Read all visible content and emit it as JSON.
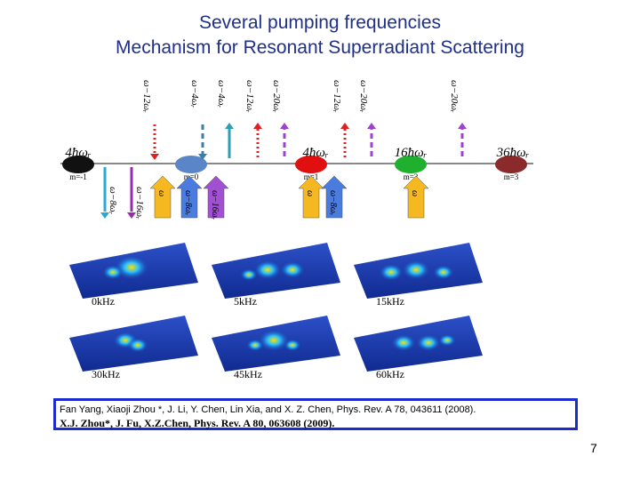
{
  "title": {
    "line1": "Several pumping frequencies",
    "line2": "Mechanism for Resonant Superradiant Scattering"
  },
  "diagram": {
    "energies": [
      "4ħωᵣ",
      "4ħωᵣ",
      "16ħωᵣ",
      "36ħωᵣ"
    ],
    "levels": [
      "m=-1",
      "m=0",
      "m=1",
      "m=2",
      "m=3"
    ],
    "top_arrows": [
      "ω−12ωᵣ",
      "ω−4ωᵣ",
      "ω−4ωᵣ",
      "ω−12ωᵣ",
      "ω−20ωᵣ",
      "ω−12ωᵣ",
      "ω−20ωᵣ",
      "ω−20ωᵣ"
    ],
    "bottom_arrows": [
      "ω−8ωᵣ",
      "ω−16ωᵣ"
    ],
    "pump_arrows": [
      "ω",
      "ω−8ωᵣ",
      "ω−16ωᵣ",
      "ω",
      "ω−8ωᵣ",
      "ω"
    ]
  },
  "plots": [
    "0kHz",
    "5kHz",
    "15kHz",
    "30kHz",
    "45kHz",
    "60kHz"
  ],
  "reference": {
    "line1": "Fan Yang, Xiaoji Zhou *,  J. Li, Y. Chen, Lin Xia, and X. Z. Chen, Phys. Rev. A 78, 043611 (2008).",
    "line2": "X.J. Zhou*, J. Fu, X.Z.Chen, Phys. Rev. A 80, 063608 (2009)."
  },
  "page_number": "7"
}
